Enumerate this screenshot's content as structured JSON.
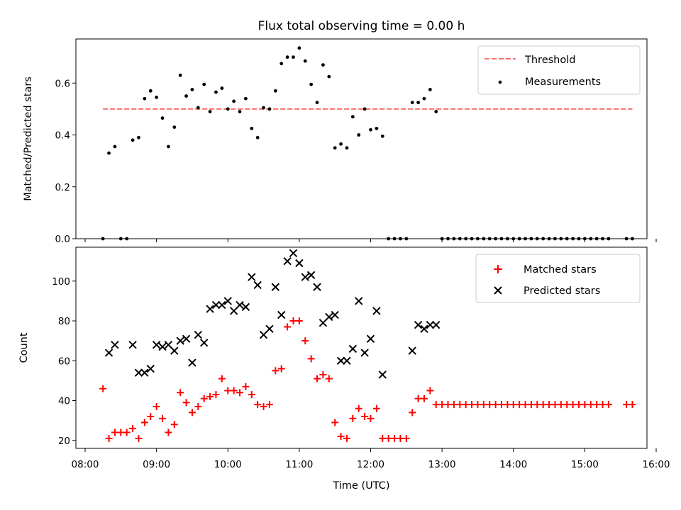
{
  "chart_data": [
    {
      "type": "scatter",
      "title": "Flux total observing time = 0.00 h",
      "ylabel": "Matched/Predicted stars",
      "xlim": [
        "08:00",
        "16:00"
      ],
      "ylim": [
        0,
        0.77
      ],
      "yticks": [
        "0.0",
        "0.2",
        "0.4",
        "0.6"
      ],
      "legend_position": "upper right",
      "series": [
        {
          "name": "Threshold",
          "kind": "dashed-line",
          "color": "#ff6e6e",
          "x": [
            "08:15",
            "15:40"
          ],
          "y": [
            0.5,
            0.5
          ]
        },
        {
          "name": "Measurements",
          "kind": "dots",
          "color": "#000000",
          "x": [
            "08:15",
            "08:20",
            "08:25",
            "08:30",
            "08:35",
            "08:40",
            "08:45",
            "08:50",
            "08:55",
            "09:00",
            "09:05",
            "09:10",
            "09:15",
            "09:20",
            "09:25",
            "09:30",
            "09:35",
            "09:40",
            "09:45",
            "09:50",
            "09:55",
            "10:00",
            "10:05",
            "10:10",
            "10:15",
            "10:20",
            "10:25",
            "10:30",
            "10:35",
            "10:40",
            "10:45",
            "10:50",
            "10:55",
            "11:00",
            "11:05",
            "11:10",
            "11:15",
            "11:20",
            "11:25",
            "11:30",
            "11:35",
            "11:40",
            "11:45",
            "11:50",
            "11:55",
            "12:00",
            "12:05",
            "12:10",
            "12:15",
            "12:20",
            "12:25",
            "12:30",
            "12:35",
            "12:40",
            "12:45",
            "12:50",
            "12:55",
            "13:00",
            "13:05",
            "13:10",
            "13:15",
            "13:20",
            "13:25",
            "13:30",
            "13:35",
            "13:40",
            "13:45",
            "13:50",
            "13:55",
            "14:00",
            "14:05",
            "14:10",
            "14:15",
            "14:20",
            "14:25",
            "14:30",
            "14:35",
            "14:40",
            "14:45",
            "14:50",
            "14:55",
            "15:00",
            "15:05",
            "15:10",
            "15:15",
            "15:20",
            "15:35",
            "15:40"
          ],
          "y": [
            0.0,
            0.33,
            0.355,
            0.0,
            0.0,
            0.38,
            0.39,
            0.54,
            0.57,
            0.545,
            0.465,
            0.355,
            0.43,
            0.63,
            0.55,
            0.575,
            0.505,
            0.595,
            0.49,
            0.565,
            0.58,
            0.5,
            0.53,
            0.49,
            0.54,
            0.425,
            0.39,
            0.505,
            0.5,
            0.57,
            0.675,
            0.7,
            0.7,
            0.735,
            0.685,
            0.595,
            0.525,
            0.67,
            0.625,
            0.35,
            0.365,
            0.35,
            0.47,
            0.4,
            0.5,
            0.42,
            0.425,
            0.395,
            0.0,
            0.0,
            0.0,
            0.0,
            0.525,
            0.525,
            0.54,
            0.575,
            0.49,
            0.0,
            0.0,
            0.0,
            0.0,
            0.0,
            0.0,
            0.0,
            0.0,
            0.0,
            0.0,
            0.0,
            0.0,
            0.0,
            0.0,
            0.0,
            0.0,
            0.0,
            0.0,
            0.0,
            0.0,
            0.0,
            0.0,
            0.0,
            0.0,
            0.0,
            0.0,
            0.0,
            0.0,
            0.0,
            0.0,
            0.0
          ]
        }
      ]
    },
    {
      "type": "scatter",
      "xlabel": "Time (UTC)",
      "ylabel": "Count",
      "xlim": [
        "08:00",
        "16:00"
      ],
      "xticks": [
        "08:00",
        "09:00",
        "10:00",
        "11:00",
        "12:00",
        "13:00",
        "14:00",
        "15:00",
        "16:00"
      ],
      "ylim": [
        16,
        117
      ],
      "yticks": [
        "20",
        "40",
        "60",
        "80",
        "100"
      ],
      "legend_position": "upper right",
      "series": [
        {
          "name": "Matched stars",
          "marker": "+",
          "color": "#ff0000",
          "x": [
            "08:15",
            "08:20",
            "08:25",
            "08:30",
            "08:35",
            "08:40",
            "08:45",
            "08:50",
            "08:55",
            "09:00",
            "09:05",
            "09:10",
            "09:15",
            "09:20",
            "09:25",
            "09:30",
            "09:35",
            "09:40",
            "09:45",
            "09:50",
            "09:55",
            "10:00",
            "10:05",
            "10:10",
            "10:15",
            "10:20",
            "10:25",
            "10:30",
            "10:35",
            "10:40",
            "10:45",
            "10:50",
            "10:55",
            "11:00",
            "11:05",
            "11:10",
            "11:15",
            "11:20",
            "11:25",
            "11:30",
            "11:35",
            "11:40",
            "11:45",
            "11:50",
            "11:55",
            "12:00",
            "12:05",
            "12:10",
            "12:15",
            "12:20",
            "12:25",
            "12:30",
            "12:35",
            "12:40",
            "12:45",
            "12:50",
            "12:55",
            "13:00",
            "13:05",
            "13:10",
            "13:15",
            "13:20",
            "13:25",
            "13:30",
            "13:35",
            "13:40",
            "13:45",
            "13:50",
            "13:55",
            "14:00",
            "14:05",
            "14:10",
            "14:15",
            "14:20",
            "14:25",
            "14:30",
            "14:35",
            "14:40",
            "14:45",
            "14:50",
            "14:55",
            "15:00",
            "15:05",
            "15:10",
            "15:15",
            "15:20",
            "15:35",
            "15:40"
          ],
          "y": [
            46,
            21,
            24,
            24,
            24,
            26,
            21,
            29,
            32,
            37,
            31,
            24,
            28,
            44,
            39,
            34,
            37,
            41,
            42,
            43,
            51,
            45,
            45,
            44,
            47,
            43,
            38,
            37,
            38,
            55,
            56,
            77,
            80,
            80,
            70,
            61,
            51,
            53,
            51,
            29,
            22,
            21,
            31,
            36,
            32,
            31,
            36,
            21,
            21,
            21,
            21,
            21,
            34,
            41,
            41,
            45,
            38,
            38,
            38,
            38,
            38,
            38,
            38,
            38,
            38,
            38,
            38,
            38,
            38,
            38,
            38,
            38,
            38,
            38,
            38,
            38,
            38,
            38,
            38,
            38,
            38,
            38,
            38,
            38,
            38,
            38,
            38,
            38
          ]
        },
        {
          "name": "Predicted stars",
          "marker": "x",
          "color": "#000000",
          "x": [
            "08:20",
            "08:25",
            "08:40",
            "08:45",
            "08:50",
            "08:55",
            "09:00",
            "09:05",
            "09:10",
            "09:15",
            "09:20",
            "09:25",
            "09:30",
            "09:35",
            "09:40",
            "09:45",
            "09:50",
            "09:55",
            "10:00",
            "10:05",
            "10:10",
            "10:15",
            "10:20",
            "10:25",
            "10:30",
            "10:35",
            "10:40",
            "10:45",
            "10:50",
            "10:55",
            "11:00",
            "11:05",
            "11:10",
            "11:15",
            "11:20",
            "11:25",
            "11:30",
            "11:35",
            "11:40",
            "11:45",
            "11:50",
            "11:55",
            "12:00",
            "12:05",
            "12:10",
            "12:35",
            "12:40",
            "12:45",
            "12:50",
            "12:55"
          ],
          "y": [
            64,
            68,
            68,
            54,
            54,
            56,
            68,
            67,
            68,
            65,
            70,
            71,
            59,
            73,
            69,
            86,
            88,
            88,
            90,
            85,
            88,
            87,
            102,
            98,
            73,
            76,
            97,
            83,
            110,
            114,
            109,
            102,
            103,
            97,
            79,
            82,
            83,
            60,
            60,
            66,
            90,
            64,
            71,
            85,
            53,
            65,
            78,
            76,
            78,
            78
          ]
        }
      ]
    }
  ]
}
